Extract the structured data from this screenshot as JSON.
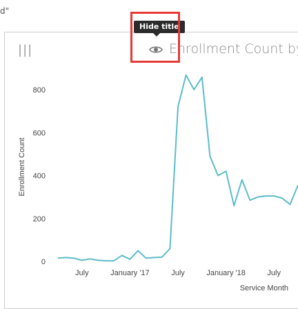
{
  "top_text": "d\"",
  "panel": {
    "title": "Enrollment Count by",
    "drag_icon": "drag-handle-icon",
    "visibility_icon": "eye-icon"
  },
  "tooltip": {
    "text": "Hide title"
  },
  "colors": {
    "series": "#5bbcc9",
    "highlight": "#e53935"
  },
  "chart_data": {
    "type": "line",
    "xlabel": "Service Month",
    "ylabel": "Enrollment Count",
    "ylim": [
      0,
      900
    ],
    "yticks": [
      0,
      200,
      400,
      600,
      800
    ],
    "x_tick_labels": [
      "July",
      "January '17",
      "July",
      "January '18",
      "July"
    ],
    "x_tick_index": [
      3,
      9,
      15,
      21,
      27
    ],
    "x": [
      "2016-04",
      "2016-05",
      "2016-06",
      "2016-07",
      "2016-08",
      "2016-09",
      "2016-10",
      "2016-11",
      "2016-12",
      "2017-01",
      "2017-02",
      "2017-03",
      "2017-04",
      "2017-05",
      "2017-06",
      "2017-07",
      "2017-08",
      "2017-09",
      "2017-10",
      "2017-11",
      "2017-12",
      "2018-01",
      "2018-02",
      "2018-03",
      "2018-04",
      "2018-05",
      "2018-06",
      "2018-07",
      "2018-08",
      "2018-09",
      "2018-10"
    ],
    "values": [
      15,
      18,
      15,
      5,
      12,
      5,
      3,
      3,
      28,
      10,
      50,
      15,
      18,
      20,
      60,
      720,
      868,
      800,
      858,
      490,
      400,
      420,
      260,
      380,
      285,
      300,
      305,
      305,
      295,
      265,
      355
    ]
  }
}
